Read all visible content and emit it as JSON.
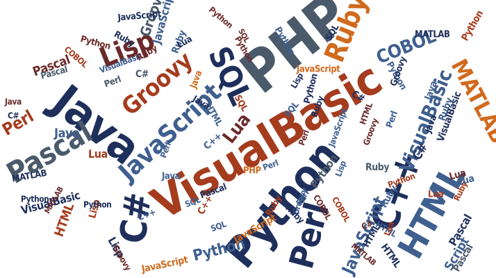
{
  "image": {
    "subject": "programming languages word cloud",
    "background_color": "#ffffff"
  },
  "palette": {
    "dark_blue": "#1f2f5b",
    "steel_blue": "#3f5f8f",
    "slate": "#4a5a6a",
    "rust": "#a53c1e",
    "orange": "#d06a1e",
    "maroon": "#6b2a2a"
  },
  "words": [
    {
      "text": "VisualBasic",
      "color": "rust",
      "weight": 5
    },
    {
      "text": "PHP",
      "color": "slate",
      "weight": 5
    },
    {
      "text": "Java",
      "color": "dark_blue",
      "weight": 5
    },
    {
      "text": "Python",
      "color": "dark_blue",
      "weight": 5
    },
    {
      "text": "JavaScript",
      "color": "steel_blue",
      "weight": 4
    },
    {
      "text": "C#",
      "color": "dark_blue",
      "weight": 4
    },
    {
      "text": "C++",
      "color": "dark_blue",
      "weight": 4
    },
    {
      "text": "HTML",
      "color": "steel_blue",
      "weight": 4
    },
    {
      "text": "Pascal",
      "color": "slate",
      "weight": 4
    },
    {
      "text": "Perl",
      "color": "dark_blue",
      "weight": 4
    },
    {
      "text": "Lisp",
      "color": "maroon",
      "weight": 3
    },
    {
      "text": "Groovy",
      "color": "rust",
      "weight": 3
    },
    {
      "text": "Ruby",
      "color": "orange",
      "weight": 3
    },
    {
      "text": "SQL",
      "color": "dark_blue",
      "weight": 3
    },
    {
      "text": "MATLAB",
      "color": "orange",
      "weight": 3
    },
    {
      "text": "COBOL",
      "color": "steel_blue",
      "weight": 3
    },
    {
      "text": "VisualBasic",
      "color": "steel_blue",
      "weight": 3
    },
    {
      "text": "JavaScript",
      "color": "steel_blue",
      "weight": 3
    },
    {
      "text": "Lua",
      "color": "maroon",
      "weight": 3
    },
    {
      "text": "Python",
      "color": "steel_blue",
      "weight": 3
    },
    {
      "text": "Perl",
      "color": "rust",
      "weight": 3
    },
    {
      "text": "Pascal",
      "color": "maroon",
      "weight": 2
    },
    {
      "text": "Java",
      "color": "steel_blue",
      "weight": 2
    },
    {
      "text": "JavaScript",
      "color": "steel_blue",
      "weight": 2
    },
    {
      "text": "C++",
      "color": "steel_blue",
      "weight": 2
    },
    {
      "text": "Lua",
      "color": "rust",
      "weight": 2
    },
    {
      "text": "Python",
      "color": "slate",
      "weight": 2
    },
    {
      "text": "VisualBasic",
      "color": "dark_blue",
      "weight": 2
    },
    {
      "text": "HTML",
      "color": "rust",
      "weight": 2
    },
    {
      "text": "Lisp",
      "color": "dark_blue",
      "weight": 2
    },
    {
      "text": "MATLAB",
      "color": "dark_blue",
      "weight": 2
    },
    {
      "text": "C#",
      "color": "slate",
      "weight": 2
    },
    {
      "text": "Groovy",
      "color": "slate",
      "weight": 2
    },
    {
      "text": "Ruby",
      "color": "steel_blue",
      "weight": 2
    },
    {
      "text": "JavaScript",
      "color": "orange",
      "weight": 2
    },
    {
      "text": "Ruby",
      "color": "steel_blue",
      "weight": 2
    },
    {
      "text": "Script",
      "color": "steel_blue",
      "weight": 2
    },
    {
      "text": "Lua",
      "color": "maroon",
      "weight": 2
    },
    {
      "text": "C#",
      "color": "dark_blue",
      "weight": 2
    },
    {
      "text": "Pascal",
      "color": "slate",
      "weight": 2
    },
    {
      "text": "Pascal",
      "color": "slate",
      "weight": 1
    },
    {
      "text": "Python",
      "color": "maroon",
      "weight": 1
    },
    {
      "text": "Ruby",
      "color": "dark_blue",
      "weight": 1
    },
    {
      "text": "JavaScript",
      "color": "dark_blue",
      "weight": 1
    },
    {
      "text": "COBOL",
      "color": "rust",
      "weight": 1
    },
    {
      "text": "Perl",
      "color": "slate",
      "weight": 1
    },
    {
      "text": "C#",
      "color": "dark_blue",
      "weight": 1
    },
    {
      "text": "VisualBasic",
      "color": "steel_blue",
      "weight": 1
    },
    {
      "text": "Perl",
      "color": "steel_blue",
      "weight": 1
    },
    {
      "text": "Python",
      "color": "dark_blue",
      "weight": 1
    },
    {
      "text": "Java",
      "color": "maroon",
      "weight": 1
    },
    {
      "text": "Lisp",
      "color": "rust",
      "weight": 1
    },
    {
      "text": "HTML",
      "color": "steel_blue",
      "weight": 1
    },
    {
      "text": "SQL",
      "color": "rust",
      "weight": 1
    },
    {
      "text": "Perl",
      "color": "steel_blue",
      "weight": 1
    },
    {
      "text": "MATLAB",
      "color": "maroon",
      "weight": 1
    },
    {
      "text": "COBOL",
      "color": "maroon",
      "weight": 1
    },
    {
      "text": "C++",
      "color": "steel_blue",
      "weight": 1
    },
    {
      "text": "Groovy",
      "color": "maroon",
      "weight": 1
    },
    {
      "text": "SQL",
      "color": "steel_blue",
      "weight": 1
    },
    {
      "text": "Lua",
      "color": "steel_blue",
      "weight": 1
    },
    {
      "text": "Pascal",
      "color": "dark_blue",
      "weight": 1
    },
    {
      "text": "JavaScript",
      "color": "orange",
      "weight": 1
    },
    {
      "text": "HTML",
      "color": "dark_blue",
      "weight": 1
    },
    {
      "text": "Ruby",
      "color": "slate",
      "weight": 1
    },
    {
      "text": "Python",
      "color": "rust",
      "weight": 1
    },
    {
      "text": "Java",
      "color": "steel_blue",
      "weight": 1
    },
    {
      "text": "VisualBasic",
      "color": "dark_blue",
      "weight": 1
    },
    {
      "text": "C#",
      "color": "dark_blue",
      "weight": 1
    },
    {
      "text": "MATLAB",
      "color": "maroon",
      "weight": 1
    },
    {
      "text": "Perl",
      "color": "steel_blue",
      "weight": 1
    },
    {
      "text": "COBOL",
      "color": "rust",
      "weight": 1
    },
    {
      "text": "Groovy",
      "color": "steel_blue",
      "weight": 1
    },
    {
      "text": "SQL",
      "color": "steel_blue",
      "weight": 1
    },
    {
      "text": "Lisp",
      "color": "dark_blue",
      "weight": 1
    },
    {
      "text": "Ruby",
      "color": "rust",
      "weight": 1
    },
    {
      "text": "HTML",
      "color": "steel_blue",
      "weight": 1
    },
    {
      "text": "PHP",
      "color": "orange",
      "weight": 1
    },
    {
      "text": "Java",
      "color": "dark_blue",
      "weight": 1
    },
    {
      "text": "Python",
      "color": "dark_blue",
      "weight": 1
    },
    {
      "text": "Groovy",
      "color": "maroon",
      "weight": 1
    },
    {
      "text": "Lua",
      "color": "rust",
      "weight": 1
    },
    {
      "text": "Pascal",
      "color": "dark_blue",
      "weight": 1
    },
    {
      "text": "C++",
      "color": "rust",
      "weight": 1
    },
    {
      "text": "Java",
      "color": "steel_blue",
      "weight": 1
    },
    {
      "text": "Ruby",
      "color": "maroon",
      "weight": 1
    },
    {
      "text": "Python",
      "color": "steel_blue",
      "weight": 1
    },
    {
      "text": "HTML",
      "color": "dark_blue",
      "weight": 1
    },
    {
      "text": "JavaScript",
      "color": "steel_blue",
      "weight": 1
    },
    {
      "text": "Ruby",
      "color": "dark_blue",
      "weight": 1
    },
    {
      "text": "Python",
      "color": "dark_blue",
      "weight": 1
    },
    {
      "text": "Perl",
      "color": "maroon",
      "weight": 1
    },
    {
      "text": "Java",
      "color": "orange",
      "weight": 1
    },
    {
      "text": "Python",
      "color": "steel_blue",
      "weight": 1
    },
    {
      "text": "SQL",
      "color": "dark_blue",
      "weight": 1
    },
    {
      "text": "Python",
      "color": "maroon",
      "weight": 1
    },
    {
      "text": "Ruby",
      "color": "steel_blue",
      "weight": 1
    },
    {
      "text": "MATLAB",
      "color": "dark_blue",
      "weight": 1
    },
    {
      "text": "Ruby",
      "color": "dark_blue",
      "weight": 1
    },
    {
      "text": "Lua",
      "color": "rust",
      "weight": 1
    },
    {
      "text": "SQL",
      "color": "steel_blue",
      "weight": 1
    },
    {
      "text": "HTML",
      "color": "maroon",
      "weight": 1
    },
    {
      "text": "Python",
      "color": "maroon",
      "weight": 1
    },
    {
      "text": "Ruby",
      "color": "rust",
      "weight": 1
    },
    {
      "text": "Lua",
      "color": "dark_blue",
      "weight": 1
    },
    {
      "text": "Python",
      "color": "rust",
      "weight": 1
    },
    {
      "text": "Java",
      "color": "dark_blue",
      "weight": 1
    },
    {
      "text": "Groovy",
      "color": "dark_blue",
      "weight": 1
    },
    {
      "text": "JavaScript",
      "color": "orange",
      "weight": 1
    },
    {
      "text": "Perl",
      "color": "steel_blue",
      "weight": 1
    },
    {
      "text": "C#",
      "color": "maroon",
      "weight": 1
    },
    {
      "text": "Lisp",
      "color": "steel_blue",
      "weight": 1
    },
    {
      "text": "SQL",
      "color": "maroon",
      "weight": 1
    }
  ]
}
